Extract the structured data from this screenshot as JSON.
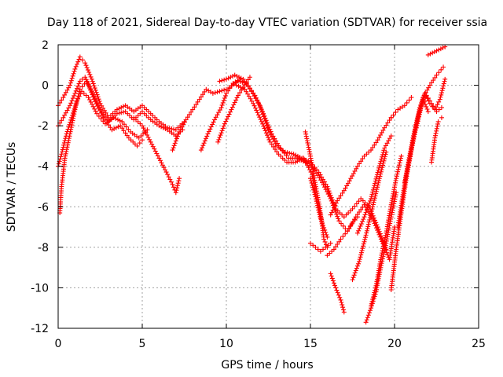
{
  "chart_data": {
    "type": "scatter",
    "title": "Day 118 of 2021, Sidereal Day-to-day VTEC variation (SDTVAR) for receiver ssia",
    "xlabel": "GPS time / hours",
    "ylabel": "SDTVAR / TECUs",
    "xlim": [
      0,
      25
    ],
    "ylim": [
      -12,
      2
    ],
    "xticks": [
      "0",
      "5",
      "10",
      "15",
      "20",
      "25"
    ],
    "yticks": [
      "2",
      "0",
      "-2",
      "-4",
      "-6",
      "-8",
      "-10",
      "-12"
    ],
    "xtick_values": [
      0,
      5,
      10,
      15,
      20,
      25
    ],
    "ytick_values": [
      2,
      0,
      -2,
      -4,
      -6,
      -8,
      -10,
      -12
    ],
    "grid": true,
    "marker": "+",
    "color": "#ff0000",
    "series": [
      {
        "x": [
          0.0,
          0.3,
          0.7,
          1.0,
          1.3,
          1.6,
          2.0,
          2.5,
          3.0,
          3.5,
          4.0,
          4.5,
          5.0,
          5.5,
          6.0,
          6.5,
          7.0,
          7.5
        ],
        "y": [
          -1.0,
          -0.6,
          0.0,
          0.8,
          1.4,
          1.1,
          0.3,
          -0.9,
          -1.6,
          -1.2,
          -1.0,
          -1.3,
          -1.0,
          -1.4,
          -1.8,
          -2.1,
          -2.2,
          -1.8
        ]
      },
      {
        "x": [
          0.0,
          0.3,
          0.7,
          1.0,
          1.3,
          1.6,
          2.0,
          2.5,
          3.0,
          3.5,
          4.0,
          4.5,
          5.0,
          5.5,
          6.0,
          6.5,
          7.0,
          7.4
        ],
        "y": [
          -2.0,
          -1.6,
          -1.0,
          -0.4,
          0.2,
          0.4,
          -0.3,
          -1.2,
          -1.8,
          -1.4,
          -1.3,
          -1.7,
          -1.3,
          -1.7,
          -2.0,
          -2.2,
          -2.5,
          -2.2
        ]
      },
      {
        "x": [
          0.0,
          0.2,
          0.5,
          0.8,
          1.1,
          1.4,
          1.8,
          2.3,
          2.8,
          3.3,
          3.8,
          4.3,
          4.8,
          5.3
        ],
        "y": [
          -4.0,
          -3.4,
          -2.4,
          -1.6,
          -0.8,
          -0.3,
          -0.6,
          -1.4,
          -1.9,
          -1.6,
          -1.8,
          -2.3,
          -2.6,
          -2.2
        ]
      },
      {
        "x": [
          0.1,
          0.2,
          0.4,
          0.7,
          1.0,
          1.3,
          1.7,
          2.2,
          2.7,
          3.2,
          3.7,
          4.2,
          4.7,
          5.0
        ],
        "y": [
          -6.3,
          -5.0,
          -3.6,
          -2.4,
          -1.2,
          -0.2,
          0.2,
          -0.8,
          -1.6,
          -2.2,
          -2.0,
          -2.6,
          -3.0,
          -2.7
        ]
      },
      {
        "x": [
          4.5,
          5.0,
          5.5,
          6.0,
          6.5,
          6.8,
          7.0,
          7.2
        ],
        "y": [
          -1.6,
          -2.0,
          -2.8,
          -3.6,
          -4.4,
          -4.9,
          -5.3,
          -4.6
        ]
      },
      {
        "x": [
          6.8,
          7.2,
          7.6,
          8.0,
          8.4,
          8.8,
          9.2,
          9.6,
          10.0
        ],
        "y": [
          -3.2,
          -2.3,
          -1.7,
          -1.2,
          -0.7,
          -0.2,
          -0.4,
          -0.3,
          -0.2
        ]
      },
      {
        "x": [
          8.5,
          8.9,
          9.3,
          9.7,
          10.0,
          10.4,
          10.8,
          11.0
        ],
        "y": [
          -3.2,
          -2.4,
          -1.7,
          -1.1,
          -0.4,
          0.1,
          0.3,
          0.2
        ]
      },
      {
        "x": [
          9.5,
          9.9,
          10.3,
          10.7,
          11.0,
          11.4
        ],
        "y": [
          -2.8,
          -1.9,
          -1.2,
          -0.5,
          -0.1,
          0.4
        ]
      },
      {
        "x": [
          9.6,
          10.0,
          10.5,
          11.0,
          11.5,
          12.0,
          12.5,
          13.0,
          13.5,
          14.0,
          14.5,
          15.0,
          15.5,
          16.0,
          16.5,
          17.0,
          17.5,
          18.0,
          18.5,
          19.0,
          19.5
        ],
        "y": [
          0.2,
          0.3,
          0.5,
          0.3,
          -0.3,
          -1.0,
          -2.2,
          -3.0,
          -3.3,
          -3.4,
          -3.6,
          -3.8,
          -4.3,
          -5.0,
          -6.1,
          -6.5,
          -6.1,
          -5.6,
          -6.0,
          -7.0,
          -8.1
        ]
      },
      {
        "x": [
          10.2,
          10.7,
          11.2,
          11.7,
          12.2,
          12.7,
          13.2,
          13.7,
          14.2,
          14.7,
          15.2,
          15.7,
          16.2,
          16.7,
          17.2,
          17.7,
          18.2,
          18.7,
          19.2,
          19.7,
          20.0
        ],
        "y": [
          -0.1,
          0.2,
          0.1,
          -0.5,
          -1.4,
          -2.4,
          -3.1,
          -3.6,
          -3.6,
          -3.8,
          -4.1,
          -4.8,
          -5.6,
          -6.7,
          -7.2,
          -6.5,
          -5.9,
          -6.6,
          -7.6,
          -8.6,
          -7.0
        ]
      },
      {
        "x": [
          10.6,
          11.1,
          11.6,
          12.1,
          12.6,
          13.1,
          13.6,
          14.1,
          14.6,
          15.1,
          15.3,
          15.7,
          16.0
        ],
        "y": [
          0.0,
          -0.2,
          -0.9,
          -1.8,
          -2.8,
          -3.4,
          -3.8,
          -3.8,
          -3.6,
          -4.4,
          -5.4,
          -6.8,
          -7.5
        ]
      },
      {
        "x": [
          14.7,
          15.0,
          15.3,
          15.6,
          15.8,
          16.0
        ],
        "y": [
          -2.3,
          -3.5,
          -4.9,
          -6.3,
          -7.6,
          -8.0
        ]
      },
      {
        "x": [
          15.0,
          15.3,
          15.6,
          15.9,
          16.2
        ],
        "y": [
          -7.8,
          -8.0,
          -8.2,
          -8.0,
          -7.8
        ]
      },
      {
        "x": [
          15.0,
          15.3,
          15.6
        ],
        "y": [
          -4.6,
          -5.5,
          -6.6
        ]
      },
      {
        "x": [
          16.2,
          16.5,
          16.8,
          17.0
        ],
        "y": [
          -9.3,
          -10.0,
          -10.6,
          -11.2
        ]
      },
      {
        "x": [
          16.0,
          16.4,
          16.8,
          17.2,
          17.5,
          17.8
        ],
        "y": [
          -8.4,
          -8.1,
          -7.6,
          -7.2,
          -6.8,
          -6.5
        ]
      },
      {
        "x": [
          16.2,
          16.6,
          17.0,
          17.4,
          17.8,
          18.2,
          18.6,
          19.0,
          19.4,
          19.8,
          20.2,
          20.6,
          21.0
        ],
        "y": [
          -6.4,
          -5.7,
          -5.2,
          -4.6,
          -4.0,
          -3.5,
          -3.2,
          -2.7,
          -2.1,
          -1.6,
          -1.2,
          -1.0,
          -0.6
        ]
      },
      {
        "x": [
          17.5,
          17.9,
          18.3,
          18.7,
          19.1,
          19.5
        ],
        "y": [
          -9.6,
          -8.7,
          -7.4,
          -6.0,
          -4.6,
          -3.3
        ]
      },
      {
        "x": [
          17.8,
          18.2,
          18.6,
          19.0,
          19.4,
          19.8
        ],
        "y": [
          -7.3,
          -6.5,
          -5.6,
          -4.3,
          -3.1,
          -2.5
        ]
      },
      {
        "x": [
          18.3,
          18.6,
          18.9,
          19.2,
          19.5,
          19.8,
          20.1
        ],
        "y": [
          -11.7,
          -11.0,
          -10.2,
          -8.9,
          -7.8,
          -6.5,
          -5.3
        ]
      },
      {
        "x": [
          18.6,
          18.9,
          19.2,
          19.5,
          19.8,
          20.1,
          20.4
        ],
        "y": [
          -10.9,
          -9.9,
          -8.5,
          -7.3,
          -5.9,
          -4.6,
          -3.5
        ]
      },
      {
        "x": [
          19.8,
          20.1,
          20.4,
          20.7,
          21.0,
          21.3,
          21.7,
          22.1,
          22.5,
          22.9
        ],
        "y": [
          -10.1,
          -8.1,
          -6.3,
          -4.6,
          -3.2,
          -2.0,
          -0.6,
          0.0,
          0.5,
          0.9
        ]
      },
      {
        "x": [
          20.2,
          20.5,
          20.8,
          21.1,
          21.4,
          21.7,
          22.0
        ],
        "y": [
          -7.0,
          -5.4,
          -3.9,
          -2.6,
          -1.5,
          -0.7,
          -1.3
        ]
      },
      {
        "x": [
          20.6,
          20.9,
          21.2,
          21.5,
          21.8,
          22.1,
          22.4,
          22.7,
          23.0
        ],
        "y": [
          -4.8,
          -3.6,
          -2.3,
          -1.1,
          -0.4,
          -0.9,
          -1.2,
          -0.7,
          0.3
        ]
      },
      {
        "x": [
          21.3,
          21.6,
          21.9,
          22.2,
          22.5,
          22.8
        ],
        "y": [
          -2.1,
          -1.0,
          -0.5,
          -0.9,
          -1.3,
          -1.1
        ]
      },
      {
        "x": [
          22.2,
          22.4,
          22.6,
          22.8
        ],
        "y": [
          -3.8,
          -2.6,
          -1.8,
          -1.6
        ]
      },
      {
        "x": [
          22.0,
          22.5,
          23.0
        ],
        "y": [
          1.5,
          1.7,
          1.9
        ]
      },
      {
        "x": [
          19.8
        ],
        "y": [
          -1.6
        ]
      }
    ]
  }
}
